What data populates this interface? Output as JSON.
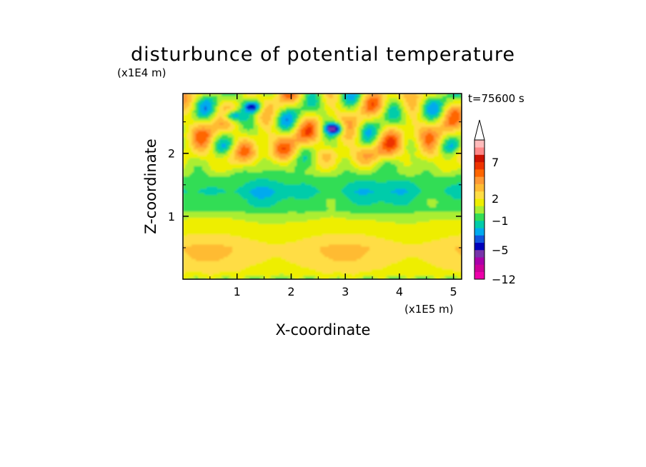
{
  "chart_data": {
    "type": "heatmap",
    "title": "disturbunce of potential temperature",
    "xlabel": "X-coordinate",
    "ylabel": "Z-coordinate",
    "x_unit": "(x1E5 m)",
    "y_unit": "(x1E4 m)",
    "time_label": "t=75600 s",
    "xlim": [
      0,
      5.15
    ],
    "ylim": [
      0,
      2.95
    ],
    "x_ticks": [
      "1",
      "2",
      "3",
      "4",
      "5"
    ],
    "y_ticks": [
      "1",
      "2"
    ],
    "colorbar": {
      "levels": [
        -12,
        -10,
        -8,
        -6,
        -5,
        -4,
        -3,
        -2,
        -1,
        0,
        1,
        2,
        3,
        4,
        5,
        6,
        7,
        8,
        9,
        10
      ],
      "tick_labels": [
        "-12",
        "-5",
        "-1",
        "2",
        "7"
      ],
      "colors": [
        "#ee00aa",
        "#cc0099",
        "#aa00aa",
        "#7733aa",
        "#0000bb",
        "#1155dd",
        "#00aaee",
        "#00ccaa",
        "#33dd55",
        "#aaee33",
        "#eeee00",
        "#ffdd44",
        "#ffbb33",
        "#ff9933",
        "#ff6600",
        "#ee3300",
        "#cc1100",
        "#ff8888",
        "#ffbbbb"
      ],
      "extend": "max"
    },
    "z_profile": [
      {
        "z": 0.0,
        "v": 1.5
      },
      {
        "z": 0.3,
        "v": 2.5
      },
      {
        "z": 0.5,
        "v": 2.8
      },
      {
        "z": 0.75,
        "v": 1.6
      },
      {
        "z": 1.0,
        "v": 0.8
      },
      {
        "z": 1.1,
        "v": -0.4
      },
      {
        "z": 1.25,
        "v": -0.8
      },
      {
        "z": 1.4,
        "v": -1.6
      },
      {
        "z": 1.6,
        "v": -0.6
      },
      {
        "z": 1.8,
        "v": 0.8
      },
      {
        "z": 2.0,
        "v": 2.6
      },
      {
        "z": 2.3,
        "v": 2.3
      },
      {
        "z": 2.6,
        "v": 1.3
      },
      {
        "z": 2.95,
        "v": 1.6
      }
    ],
    "notable_extrema": [
      {
        "x": 1.3,
        "z": 2.75,
        "value": -5
      },
      {
        "x": 2.8,
        "z": 2.4,
        "value": -5
      },
      {
        "x": 0.9,
        "z": 2.6,
        "value": -5
      }
    ]
  }
}
